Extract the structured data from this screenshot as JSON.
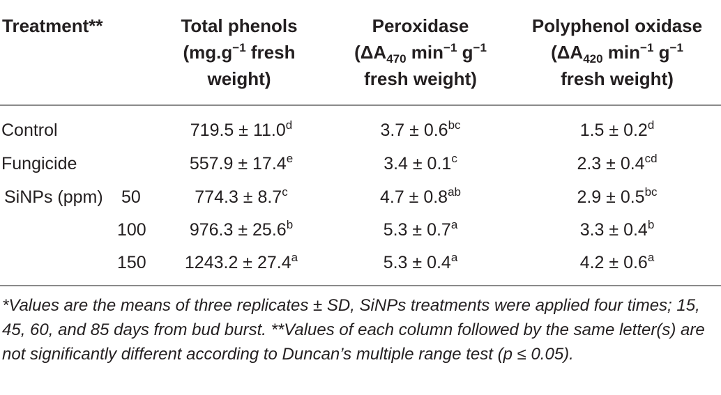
{
  "header": {
    "treatment": "Treatment**",
    "phenols": {
      "line1": "Total phenols",
      "line2_pre": "(mg.g",
      "line2_sup": "−1",
      "line2_post": " fresh",
      "line3": "weight)"
    },
    "peroxidase": {
      "line1": "Peroxidase",
      "line2_pre": "(ΔA",
      "line2_sub": "470",
      "line2_mid": " min",
      "line2_sup1": "−1",
      "line2_mid2": " g",
      "line2_sup2": "−1",
      "line3": "fresh weight)"
    },
    "ppo": {
      "line1": "Polyphenol oxidase",
      "line2_pre": "(ΔA",
      "line2_sub": "420",
      "line2_mid": " min",
      "line2_sup1": "−1",
      "line2_mid2": " g",
      "line2_sup2": "−1",
      "line3": "fresh weight)"
    }
  },
  "rows": [
    {
      "label": "Control",
      "dose": "",
      "phenols": "719.5 ± 11.0",
      "phenols_sup": "d",
      "perox": "3.7 ± 0.6",
      "perox_sup": "bc",
      "ppo": "1.5 ± 0.2",
      "ppo_sup": "d"
    },
    {
      "label": "Fungicide",
      "dose": "",
      "phenols": "557.9 ± 17.4",
      "phenols_sup": "e",
      "perox": "3.4 ± 0.1",
      "perox_sup": "c",
      "ppo": "2.3 ± 0.4",
      "ppo_sup": "cd"
    },
    {
      "label": "SiNPs (ppm)",
      "dose": "50",
      "phenols": "774.3 ± 8.7",
      "phenols_sup": "c",
      "perox": "4.7 ± 0.8",
      "perox_sup": "ab",
      "ppo": "2.9 ± 0.5",
      "ppo_sup": "bc"
    },
    {
      "label": "",
      "dose": "100",
      "phenols": "976.3 ± 25.6",
      "phenols_sup": "b",
      "perox": "5.3 ± 0.7",
      "perox_sup": "a",
      "ppo": "3.3 ± 0.4",
      "ppo_sup": "b"
    },
    {
      "label": "",
      "dose": "150",
      "phenols": "1243.2 ± 27.4",
      "phenols_sup": "a",
      "perox": "5.3 ± 0.4",
      "perox_sup": "a",
      "ppo": "4.2 ± 0.6",
      "ppo_sup": "a"
    }
  ],
  "footnote": "*Values are the means of three replicates ± SD, SiNPs treatments were applied four times; 15, 45, 60, and 85 days from bud burst. **Values of each column followed by the same letter(s) are not significantly different according to Duncan’s multiple range test (p ≤ 0.05)."
}
